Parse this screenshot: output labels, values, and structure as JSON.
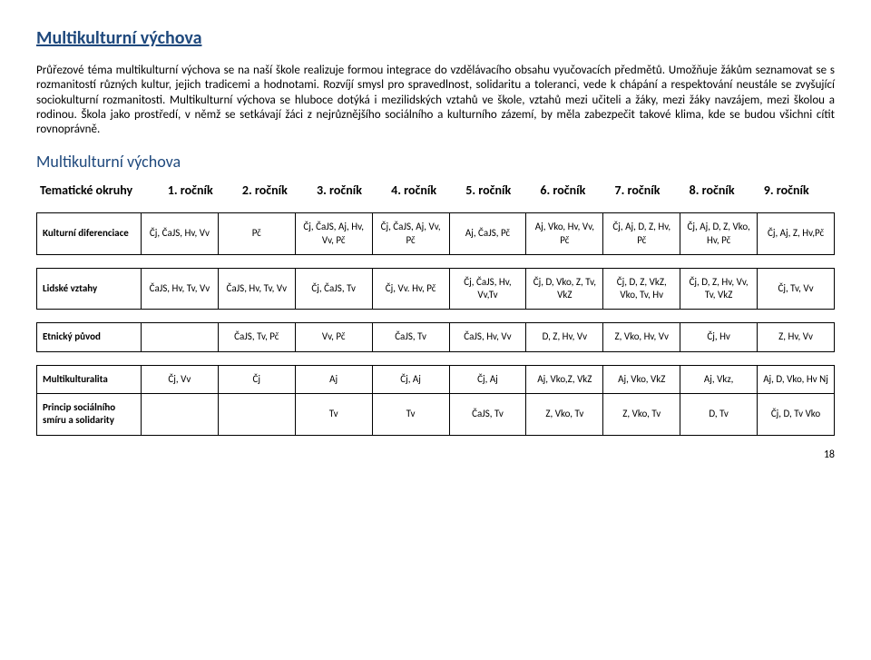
{
  "title": "Multikulturní výchova",
  "paragraph": "Průřezové téma multikulturní výchova se na naší škole realizuje formou integrace do vzdělávacího obsahu vyučovacích předmětů. Umožňuje žákům seznamovat se s rozmanitostí různých kultur, jejich tradicemi a hodnotami. Rozvíjí smysl pro spravedlnost, solidaritu a toleranci, vede k chápání a respektování neustále se zvyšující sociokulturní rozmanitosti. Multikulturní výchova se hluboce dotýká i mezilidských vztahů ve škole, vztahů mezi učiteli a žáky, mezi žáky navzájem, mezi školou a rodinou. Škola jako prostředí, v němž se setkávají žáci z nejrůznějšího sociálního a kulturního zázemí, by měla zabezpečit takové klima, kde se budou všichni cítit rovnoprávně.",
  "subtitle": "Multikulturní výchova",
  "columns": [
    "Tematické okruhy",
    "1. ročník",
    "2. ročník",
    "3. ročník",
    "4. ročník",
    "5. ročník",
    "6. ročník",
    "7. ročník",
    "8. ročník",
    "9. ročník"
  ],
  "rows": [
    {
      "label": "Kulturní diferenciace",
      "cells": [
        "Čj, ČaJS, Hv, Vv",
        "Pč",
        "Čj, ČaJS, Aj, Hv, Vv, Pč",
        "Čj, ČaJS, Aj, Vv, Pč",
        "Aj, ČaJS, Pč",
        "Aj, Vko, Hv, Vv, Pč",
        "Čj, Aj, D, Z, Hv, Pč",
        "Čj, Aj, D, Z, Vko, Hv, Pč",
        "Čj, Aj, Z, Hv,Pč"
      ]
    },
    {
      "label": "Lidské vztahy",
      "cells": [
        "ČaJS, Hv, Tv, Vv",
        "ČaJS, Hv, Tv, Vv",
        "Čj, ČaJS, Tv",
        "Čj, Vv. Hv, Pč",
        "Čj, ČaJS, Hv, Vv,Tv",
        "Čj, D, Vko, Z, Tv, VkZ",
        "Čj, D, Z, VkZ, Vko, Tv, Hv",
        "Čj, D, Z, Hv, Vv, Tv, VkZ",
        "Čj, Tv, Vv"
      ]
    },
    {
      "label": "Etnický původ",
      "cells": [
        "",
        "ČaJS, Tv, Pč",
        "Vv, Pč",
        "ČaJS, Tv",
        "ČaJS, Hv, Vv",
        "D, Z, Hv, Vv",
        "Z, Vko, Hv, Vv",
        "Čj, Hv",
        "Z, Hv, Vv"
      ]
    },
    {
      "label": "Multikulturalita",
      "cells": [
        "Čj, Vv",
        "Čj",
        "Aj",
        "Čj, Aj",
        "Čj, Aj",
        "Aj, Vko,Z, VkZ",
        "Aj, Vko, VkZ",
        "Aj, Vkz,",
        "Aj, D, Vko, Hv Nj"
      ]
    },
    {
      "label": "Princip sociálního smíru a solidarity",
      "cells": [
        "",
        "",
        "Tv",
        "Tv",
        "ČaJS, Tv",
        "Z, Vko, Tv",
        "Z, Vko, Tv",
        "D, Tv",
        "Čj, D, Tv Vko"
      ]
    }
  ],
  "pageNumber": "18"
}
